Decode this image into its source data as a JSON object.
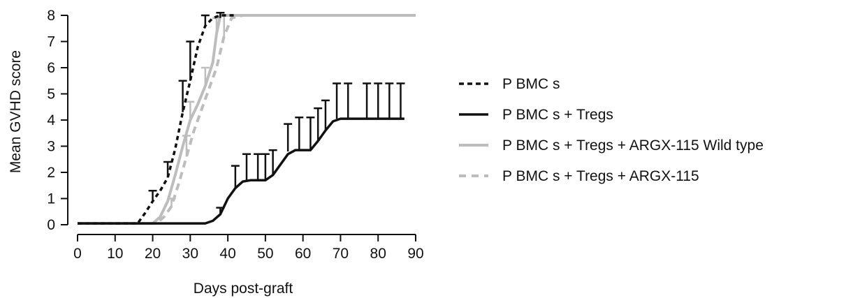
{
  "chart_data": {
    "type": "line",
    "title": "",
    "xlabel": "Days post-graft",
    "ylabel": "Mean GVHD score",
    "xlim": [
      0,
      90
    ],
    "ylim": [
      0,
      8
    ],
    "xticks": [
      "0",
      "10",
      "20",
      "30",
      "40",
      "50",
      "60",
      "70",
      "80",
      "90"
    ],
    "yticks": [
      "0",
      "1",
      "2",
      "3",
      "4",
      "5",
      "6",
      "7",
      "8"
    ],
    "grid": false,
    "legend_position": "right",
    "series": [
      {
        "name": "P BMC s",
        "color": "#111111",
        "style": "dotted",
        "x": [
          0,
          16,
          18,
          20,
          22,
          24,
          26,
          28,
          30,
          32,
          34,
          36,
          38,
          40,
          42
        ],
        "y": [
          0.05,
          0.05,
          0.45,
          0.9,
          1.3,
          1.8,
          2.9,
          4.3,
          5.5,
          6.8,
          7.6,
          7.9,
          8.0,
          8.0,
          8.0
        ],
        "errors_x": [
          20,
          24,
          28,
          30,
          34,
          38
        ],
        "errors_y": [
          0.9,
          1.8,
          4.3,
          5.5,
          7.6,
          7.9
        ],
        "errors_top": [
          1.3,
          2.4,
          5.5,
          7.0,
          8.0,
          8.1
        ]
      },
      {
        "name": "P BMC s + Tregs",
        "color": "#111111",
        "style": "solid",
        "x": [
          0,
          34,
          36,
          38,
          40,
          42,
          44,
          46,
          48,
          50,
          52,
          54,
          56,
          58,
          60,
          62,
          64,
          66,
          68,
          70,
          72,
          75,
          78,
          81,
          84,
          87
        ],
        "y": [
          0.05,
          0.05,
          0.15,
          0.4,
          1.0,
          1.4,
          1.65,
          1.7,
          1.7,
          1.7,
          1.9,
          2.3,
          2.7,
          2.85,
          2.85,
          2.85,
          3.2,
          3.6,
          3.95,
          4.05,
          4.05,
          4.05,
          4.05,
          4.05,
          4.05,
          4.05
        ],
        "errors_x": [
          38,
          42,
          45,
          48,
          50,
          52,
          56,
          59,
          62,
          64,
          66,
          69,
          72,
          77,
          80,
          83,
          86
        ],
        "errors_y": [
          0.4,
          1.4,
          1.7,
          1.7,
          1.7,
          1.9,
          2.8,
          2.85,
          2.85,
          3.2,
          3.6,
          4.05,
          4.05,
          4.05,
          4.05,
          4.05,
          4.05
        ],
        "errors_top": [
          0.65,
          2.25,
          2.7,
          2.7,
          2.7,
          2.85,
          3.85,
          4.1,
          4.1,
          4.45,
          4.75,
          5.4,
          5.4,
          5.4,
          5.4,
          5.4,
          5.4
        ]
      },
      {
        "name": "P BMC s + Tregs + ARGX-115 Wild type",
        "color": "#bdbdbd",
        "style": "solid",
        "x": [
          0,
          20,
          22,
          24,
          26,
          28,
          30,
          32,
          34,
          36,
          37,
          38,
          40,
          45,
          90
        ],
        "y": [
          0.05,
          0.05,
          0.3,
          0.9,
          1.9,
          3.0,
          4.0,
          4.6,
          5.3,
          6.2,
          7.3,
          8.0,
          8.0,
          8.0,
          8.0
        ],
        "errors_x": [
          30,
          34,
          37
        ],
        "errors_y": [
          4.0,
          5.3,
          7.3
        ],
        "errors_top": [
          4.7,
          6.0,
          7.9
        ]
      },
      {
        "name": "P BMC s + Tregs + ARGX-115",
        "color": "#bdbdbd",
        "style": "dashed",
        "x": [
          0,
          21,
          23,
          25,
          27,
          29,
          31,
          33,
          35,
          37,
          39,
          41,
          44,
          90
        ],
        "y": [
          0.05,
          0.05,
          0.3,
          0.7,
          1.6,
          2.6,
          3.6,
          4.4,
          5.2,
          6.0,
          7.2,
          7.9,
          8.0,
          8.0
        ],
        "errors_x": [
          25,
          29,
          39
        ],
        "errors_y": [
          0.7,
          2.6,
          7.2
        ],
        "errors_top": [
          1.0,
          3.4,
          8.0
        ]
      }
    ]
  }
}
